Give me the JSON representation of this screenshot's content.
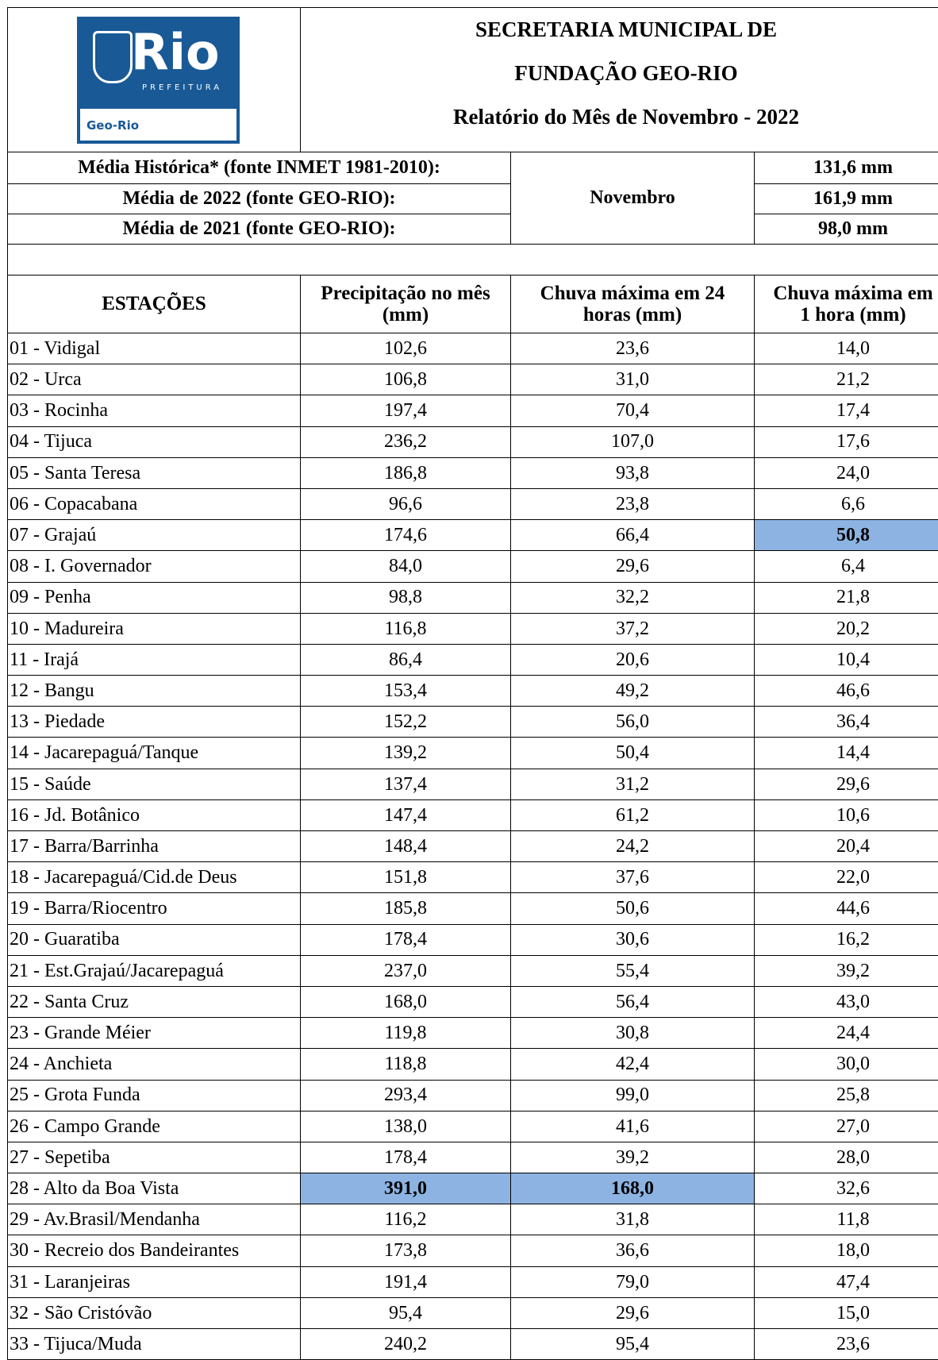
{
  "logo": {
    "name": "Rio",
    "sub": "PREFEITURA",
    "unit": "Geo-Rio"
  },
  "header": {
    "lines": [
      "SECRETARIA MUNICIPAL DE",
      "FUNDAÇÃO GEO-RIO",
      "Relatório do Mês de Novembro - 2022"
    ]
  },
  "summary": {
    "month": "Novembro",
    "rows": [
      [
        "Média Histórica* (fonte INMET 1981-2010):",
        "131,6 mm"
      ],
      [
        "Média de 2022 (fonte GEO-RIO):",
        "161,9 mm"
      ],
      [
        "Média de 2021 (fonte GEO-RIO):",
        "98,0 mm"
      ]
    ]
  },
  "table": {
    "columns": [
      [
        "ESTAÇÕES"
      ],
      [
        "Precipitação no mês",
        "(mm)"
      ],
      [
        "Chuva máxima em 24",
        "horas (mm)"
      ],
      [
        "Chuva máxima em",
        "1 hora (mm)"
      ]
    ],
    "rows": [
      [
        "01 - Vidigal",
        "102,6",
        "23,6",
        "14,0"
      ],
      [
        "02 - Urca",
        "106,8",
        "31,0",
        "21,2"
      ],
      [
        "03 - Rocinha",
        "197,4",
        "70,4",
        "17,4"
      ],
      [
        "04 - Tijuca",
        "236,2",
        "107,0",
        "17,6"
      ],
      [
        "05 - Santa Teresa",
        "186,8",
        "93,8",
        "24,0"
      ],
      [
        "06 - Copacabana",
        "96,6",
        "23,8",
        "6,6"
      ],
      [
        "07 - Grajaú",
        "174,6",
        "66,4",
        "50,8"
      ],
      [
        "08 - I. Governador",
        "84,0",
        "29,6",
        "6,4"
      ],
      [
        "09 - Penha",
        "98,8",
        "32,2",
        "21,8"
      ],
      [
        "10 - Madureira",
        "116,8",
        "37,2",
        "20,2"
      ],
      [
        "11 - Irajá",
        "86,4",
        "20,6",
        "10,4"
      ],
      [
        "12 - Bangu",
        "153,4",
        "49,2",
        "46,6"
      ],
      [
        "13 - Piedade",
        "152,2",
        "56,0",
        "36,4"
      ],
      [
        "14 - Jacarepaguá/Tanque",
        "139,2",
        "50,4",
        "14,4"
      ],
      [
        "15 - Saúde",
        "137,4",
        "31,2",
        "29,6"
      ],
      [
        "16 - Jd. Botânico",
        "147,4",
        "61,2",
        "10,6"
      ],
      [
        "17 - Barra/Barrinha",
        "148,4",
        "24,2",
        "20,4"
      ],
      [
        "18 - Jacarepaguá/Cid.de Deus",
        "151,8",
        "37,6",
        "22,0"
      ],
      [
        "19 - Barra/Riocentro",
        "185,8",
        "50,6",
        "44,6"
      ],
      [
        "20 - Guaratiba",
        "178,4",
        "30,6",
        "16,2"
      ],
      [
        "21 - Est.Grajaú/Jacarepaguá",
        "237,0",
        "55,4",
        "39,2"
      ],
      [
        "22 - Santa Cruz",
        "168,0",
        "56,4",
        "43,0"
      ],
      [
        "23 - Grande Méier",
        "119,8",
        "30,8",
        "24,4"
      ],
      [
        "24 - Anchieta",
        "118,8",
        "42,4",
        "30,0"
      ],
      [
        "25 - Grota Funda",
        "293,4",
        "99,0",
        "25,8"
      ],
      [
        "26 - Campo Grande",
        "138,0",
        "41,6",
        "27,0"
      ],
      [
        "27 - Sepetiba",
        "178,4",
        "39,2",
        "28,0"
      ],
      [
        "28 - Alto da Boa Vista",
        "391,0",
        "168,0",
        "32,6"
      ],
      [
        "29 - Av.Brasil/Mendanha",
        "116,2",
        "31,8",
        "11,8"
      ],
      [
        "30 - Recreio dos Bandeirantes",
        "173,8",
        "36,6",
        "18,0"
      ],
      [
        "31 - Laranjeiras",
        "191,4",
        "79,0",
        "47,4"
      ],
      [
        "32 - São Cristóvão",
        "95,4",
        "29,6",
        "15,0"
      ],
      [
        "33 - Tijuca/Muda",
        "240,2",
        "95,4",
        "23,6"
      ]
    ]
  }
}
